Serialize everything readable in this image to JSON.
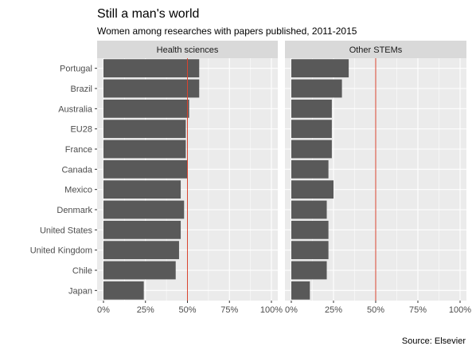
{
  "chart_data": {
    "type": "bar",
    "orientation": "horizontal",
    "title": "Still a man's world",
    "subtitle": "Women among researches with papers published, 2011-2015",
    "caption": "Source: Elsevier",
    "categories": [
      "Portugal",
      "Brazil",
      "Australia",
      "EU28",
      "France",
      "Canada",
      "Mexico",
      "Denmark",
      "United States",
      "United Kingdom",
      "Chile",
      "Japan"
    ],
    "xlim": [
      0,
      100
    ],
    "x_ticks": [
      0,
      25,
      50,
      75,
      100
    ],
    "x_tick_labels": [
      "0%",
      "25%",
      "50%",
      "75%",
      "100%"
    ],
    "reference_line": 50,
    "grid": true,
    "bar_color": "#595959",
    "panel_color": "#ebebeb",
    "strip_color": "#d9d9d9",
    "reference_color": "#d9442f",
    "panels": [
      {
        "name": "Health sciences",
        "values": [
          57,
          57,
          51,
          49,
          49,
          50,
          46,
          48,
          46,
          45,
          43,
          24
        ]
      },
      {
        "name": "Other STEMs",
        "values": [
          34,
          30,
          24,
          24,
          24,
          22,
          25,
          21,
          22,
          22,
          21,
          11
        ]
      }
    ]
  }
}
